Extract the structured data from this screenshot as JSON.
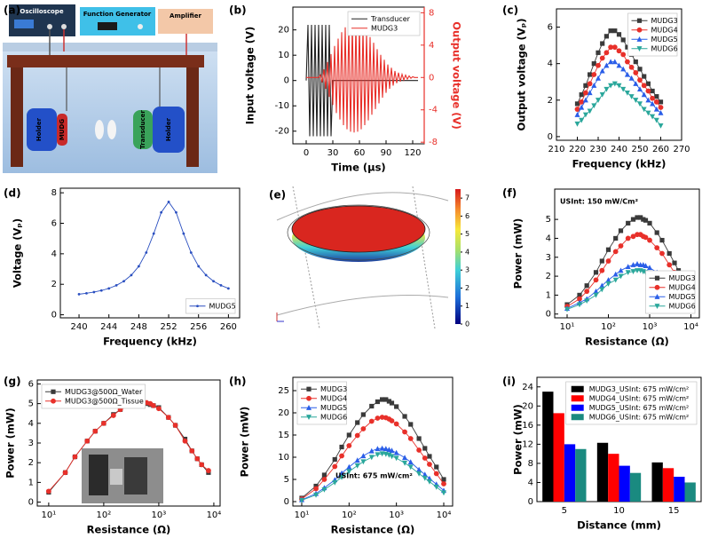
{
  "chart_data": [
    {
      "type": "diagram",
      "panel_label": "(a)",
      "labels": {
        "oscilloscope": "Oscilloscope",
        "function_generator": "Function Generator",
        "amplifier": "Amplifier",
        "holder_left": "Holder",
        "mudg": "MUDG",
        "transducer": "Transducer",
        "holder_right": "Holder"
      }
    },
    {
      "type": "line",
      "panel_label": "(b)",
      "xlabel": "Time (μs)",
      "ylabel": "Input voltage (V)",
      "y2label": "Output voltage (V)",
      "x": [
        0,
        2,
        4,
        6,
        8,
        10,
        12,
        14,
        16,
        18,
        20,
        22,
        24,
        26,
        28,
        30,
        32,
        34,
        36,
        38,
        40,
        42,
        44,
        46,
        48,
        50,
        52,
        54,
        56,
        58,
        60,
        62,
        64,
        66,
        68,
        70,
        72,
        74,
        76,
        78,
        80,
        82,
        84,
        86,
        88,
        90,
        92,
        94,
        96,
        98,
        100,
        102,
        104,
        106,
        108,
        110,
        112,
        114,
        116,
        118,
        120,
        122,
        124,
        126
      ],
      "series": [
        {
          "name": "Transducer",
          "color": "#222222",
          "marker": "none",
          "values": [
            0,
            22,
            -22,
            22,
            -22,
            22,
            -22,
            22,
            -22,
            22,
            -22,
            22,
            -22,
            22,
            -22,
            0,
            0,
            0,
            0,
            0,
            0,
            0,
            0,
            0,
            0,
            0,
            0,
            0,
            0,
            0,
            0,
            0,
            0,
            0,
            0,
            0,
            0,
            0,
            0,
            0,
            0,
            0,
            0,
            0,
            0,
            0,
            0,
            0,
            0,
            0,
            0,
            0,
            0,
            0,
            0,
            0,
            0,
            0,
            0,
            0,
            0,
            0,
            0,
            0
          ]
        },
        {
          "name": "MUDG3",
          "color": "#e8302a",
          "marker": "none",
          "axis": "y2",
          "values": [
            0,
            0,
            0,
            0,
            0,
            0,
            0,
            0,
            0.3,
            -0.6,
            1.0,
            -1.4,
            1.9,
            -2.4,
            2.9,
            -3.4,
            3.9,
            -4.4,
            4.8,
            -5.2,
            5.6,
            -5.9,
            6.2,
            -6.4,
            6.6,
            -6.7,
            6.8,
            -6.8,
            6.8,
            -6.7,
            6.6,
            -6.4,
            6.2,
            -5.9,
            5.6,
            -5.3,
            5.0,
            -4.6,
            4.3,
            -3.9,
            3.5,
            -3.2,
            2.8,
            -2.5,
            2.2,
            -1.9,
            1.6,
            -1.4,
            1.2,
            -1.0,
            0.8,
            -0.7,
            0.6,
            -0.5,
            0.4,
            -0.3,
            0.3,
            -0.2,
            0.2,
            -0.1,
            0.1,
            0,
            0,
            0
          ]
        }
      ],
      "xlim": [
        -15,
        133
      ],
      "xticks": [
        0,
        30,
        60,
        90,
        120
      ],
      "ylim": [
        -25,
        29
      ],
      "yticks": [
        -20,
        -10,
        0,
        10,
        20
      ],
      "y2lim": [
        -8.2,
        8.7
      ],
      "y2ticks": [
        -8,
        -4,
        0,
        4,
        8
      ],
      "legend": "upper right"
    },
    {
      "type": "line",
      "panel_label": "(c)",
      "xlabel": "Frequency (kHz)",
      "ylabel": "Output voltage (Vₚ)",
      "x": [
        220,
        222,
        224,
        226,
        228,
        230,
        232,
        234,
        236,
        238,
        240,
        242,
        244,
        246,
        248,
        250,
        252,
        254,
        256,
        258,
        260
      ],
      "series": [
        {
          "name": "MUDG3",
          "color": "#3a3a3a",
          "marker": "square",
          "values": [
            1.8,
            2.3,
            2.8,
            3.4,
            4.0,
            4.6,
            5.1,
            5.5,
            5.8,
            5.8,
            5.6,
            5.3,
            4.9,
            4.5,
            4.1,
            3.7,
            3.3,
            2.9,
            2.5,
            2.2,
            1.9
          ]
        },
        {
          "name": "MUDG4",
          "color": "#e8302a",
          "marker": "circle",
          "values": [
            1.5,
            1.9,
            2.4,
            2.9,
            3.4,
            3.9,
            4.3,
            4.6,
            4.9,
            4.9,
            4.7,
            4.5,
            4.1,
            3.8,
            3.5,
            3.1,
            2.8,
            2.5,
            2.1,
            1.9,
            1.6
          ]
        },
        {
          "name": "MUDG5",
          "color": "#2a5ee8",
          "marker": "triangle-up",
          "values": [
            1.2,
            1.6,
            2.0,
            2.4,
            2.8,
            3.2,
            3.6,
            3.9,
            4.1,
            4.1,
            3.9,
            3.7,
            3.4,
            3.2,
            2.9,
            2.6,
            2.3,
            2.0,
            1.8,
            1.5,
            1.3
          ]
        },
        {
          "name": "MUDG6",
          "color": "#2aa79b",
          "marker": "triangle-down",
          "values": [
            0.7,
            0.9,
            1.2,
            1.4,
            1.7,
            2.0,
            2.3,
            2.6,
            2.8,
            2.9,
            2.8,
            2.6,
            2.4,
            2.2,
            2.0,
            1.8,
            1.5,
            1.3,
            1.1,
            0.9,
            0.6
          ]
        }
      ],
      "xlim": [
        210,
        270
      ],
      "xticks": [
        210,
        220,
        230,
        240,
        250,
        260,
        270
      ],
      "ylim": [
        -0.2,
        7
      ],
      "yticks": [
        0,
        2,
        4,
        6
      ],
      "legend": "upper right"
    },
    {
      "type": "line",
      "panel_label": "(d)",
      "xlabel": "Frequency (kHz)",
      "ylabel": "Voltage (Vₚ)",
      "x": [
        240,
        241,
        242,
        243,
        244,
        245,
        246,
        247,
        248,
        249,
        250,
        251,
        252,
        253,
        254,
        255,
        256,
        257,
        258,
        259,
        260
      ],
      "series": [
        {
          "name": "MUDG5",
          "color": "#2a4fc0",
          "marker": "dot",
          "values": [
            1.35,
            1.41,
            1.49,
            1.59,
            1.73,
            1.93,
            2.2,
            2.6,
            3.18,
            4.08,
            5.32,
            6.71,
            7.4,
            6.71,
            5.32,
            4.08,
            3.18,
            2.6,
            2.2,
            1.93,
            1.73
          ]
        }
      ],
      "xlim": [
        237.5,
        261.5
      ],
      "xticks": [
        240,
        244,
        248,
        252,
        256,
        260
      ],
      "ylim": [
        -0.2,
        8.3
      ],
      "yticks": [
        0,
        2,
        4,
        6,
        8
      ],
      "legend": "lower right"
    },
    {
      "type": "contour",
      "panel_label": "(e)",
      "clim": [
        0,
        7.5
      ],
      "cticks": [
        0,
        1,
        2,
        3,
        4,
        5,
        6,
        7
      ]
    },
    {
      "type": "line",
      "panel_label": "(f)",
      "xlabel": "Resistance (Ω)",
      "ylabel": "Power (mW)",
      "annotation": "USInt: 150 mW/Cm²",
      "xlog": true,
      "x": [
        10,
        20,
        30,
        50,
        70,
        100,
        150,
        200,
        300,
        400,
        500,
        600,
        700,
        800,
        1000,
        1500,
        2000,
        3000,
        4000,
        5000,
        7000,
        10000
      ],
      "series": [
        {
          "name": "MUDG3",
          "color": "#3a3a3a",
          "marker": "square",
          "values": [
            0.5,
            1.0,
            1.5,
            2.2,
            2.8,
            3.4,
            4.0,
            4.4,
            4.8,
            5.0,
            5.1,
            5.1,
            5.0,
            4.95,
            4.8,
            4.3,
            3.9,
            3.2,
            2.7,
            2.3,
            1.8,
            1.3
          ]
        },
        {
          "name": "MUDG4",
          "color": "#e8302a",
          "marker": "circle",
          "values": [
            0.4,
            0.8,
            1.2,
            1.8,
            2.3,
            2.8,
            3.3,
            3.6,
            4.0,
            4.1,
            4.2,
            4.2,
            4.1,
            4.05,
            3.9,
            3.5,
            3.2,
            2.6,
            2.2,
            1.9,
            1.4,
            1.0
          ]
        },
        {
          "name": "MUDG5",
          "color": "#2a5ee8",
          "marker": "triangle-up",
          "values": [
            0.3,
            0.6,
            0.8,
            1.2,
            1.5,
            1.8,
            2.1,
            2.3,
            2.5,
            2.6,
            2.65,
            2.6,
            2.6,
            2.55,
            2.45,
            2.2,
            2.0,
            1.6,
            1.35,
            1.15,
            0.85,
            0.6
          ]
        },
        {
          "name": "MUDG6",
          "color": "#2aa79b",
          "marker": "triangle-down",
          "values": [
            0.25,
            0.5,
            0.7,
            1.0,
            1.3,
            1.6,
            1.8,
            2.0,
            2.2,
            2.25,
            2.3,
            2.3,
            2.25,
            2.2,
            2.1,
            1.9,
            1.7,
            1.35,
            1.1,
            0.95,
            0.7,
            0.4
          ]
        }
      ],
      "xlim": [
        5,
        16000
      ],
      "xticks": [
        {
          "value": 10,
          "label": "10¹"
        },
        {
          "value": 100,
          "label": "10²"
        },
        {
          "value": 1000,
          "label": "10³"
        },
        {
          "value": 10000,
          "label": "10⁴"
        }
      ],
      "ylim": [
        -0.2,
        6.6
      ],
      "yticks": [
        0,
        1,
        2,
        3,
        4,
        5
      ],
      "legend": "lower right"
    },
    {
      "type": "line",
      "panel_label": "(g)",
      "xlabel": "Resistance (Ω)",
      "ylabel": "Power (mW)",
      "xlog": true,
      "x": [
        10,
        20,
        30,
        50,
        70,
        100,
        150,
        200,
        300,
        400,
        500,
        600,
        700,
        800,
        1000,
        1500,
        2000,
        3000,
        4000,
        5000,
        6000,
        8000
      ],
      "series": [
        {
          "name": "MUDG3@500Ω_Water",
          "color": "#3a3a3a",
          "marker": "square",
          "values": [
            0.5,
            1.5,
            2.3,
            3.1,
            3.6,
            4.0,
            4.45,
            4.7,
            4.95,
            5.05,
            5.05,
            5.0,
            4.95,
            4.9,
            4.8,
            4.3,
            3.9,
            3.2,
            2.6,
            2.2,
            1.9,
            1.5
          ]
        },
        {
          "name": "MUDG3@500Ω_Tissue",
          "color": "#e8302a",
          "marker": "circle",
          "values": [
            0.55,
            1.5,
            2.3,
            3.1,
            3.6,
            4.0,
            4.4,
            4.7,
            4.9,
            5.0,
            5.05,
            5.05,
            5.0,
            4.9,
            4.75,
            4.3,
            3.9,
            3.1,
            2.6,
            2.2,
            1.9,
            1.6
          ]
        }
      ],
      "xlim": [
        6.2,
        13000
      ],
      "xticks": [
        {
          "value": 10,
          "label": "10¹"
        },
        {
          "value": 100,
          "label": "10²"
        },
        {
          "value": 1000,
          "label": "10³"
        },
        {
          "value": 10000,
          "label": "10⁴"
        }
      ],
      "ylim": [
        -0.2,
        6.2
      ],
      "yticks": [
        0,
        1,
        2,
        3,
        4,
        5,
        6
      ],
      "legend": "upper left"
    },
    {
      "type": "line",
      "panel_label": "(h)",
      "xlabel": "Resistance (Ω)",
      "ylabel": "Power (mW)",
      "annotation": "USInt: 675 mW/cm²",
      "xlog": true,
      "x": [
        10,
        20,
        30,
        50,
        70,
        100,
        150,
        200,
        300,
        400,
        500,
        600,
        700,
        800,
        1000,
        1500,
        2000,
        3000,
        4000,
        5000,
        7000,
        10000
      ],
      "series": [
        {
          "name": "MUDG3",
          "color": "#3a3a3a",
          "marker": "square",
          "values": [
            0.8,
            3.5,
            6.0,
            9.5,
            12.3,
            15.0,
            17.8,
            19.6,
            21.5,
            22.5,
            23.0,
            23.0,
            22.6,
            22.2,
            21.4,
            19.2,
            17.4,
            14.2,
            12.0,
            10.2,
            7.8,
            5.0
          ]
        },
        {
          "name": "MUDG4",
          "color": "#e8302a",
          "marker": "circle",
          "values": [
            0.6,
            2.9,
            5.0,
            7.9,
            10.3,
            12.6,
            14.9,
            16.4,
            18.1,
            18.8,
            19.0,
            18.9,
            18.6,
            18.2,
            17.5,
            15.7,
            14.2,
            11.6,
            9.8,
            8.4,
            6.3,
            4.0
          ]
        },
        {
          "name": "MUDG5",
          "color": "#2a5ee8",
          "marker": "triangle-up",
          "values": [
            0.4,
            1.8,
            3.1,
            4.9,
            6.4,
            7.8,
            9.3,
            10.3,
            11.4,
            11.9,
            12.0,
            11.9,
            11.7,
            11.5,
            11.0,
            9.9,
            8.9,
            7.2,
            6.1,
            5.2,
            3.9,
            2.5
          ]
        },
        {
          "name": "MUDG6",
          "color": "#2aa79b",
          "marker": "triangle-down",
          "values": [
            0.3,
            1.5,
            2.7,
            4.3,
            5.5,
            6.8,
            8.1,
            9.0,
            10.0,
            10.6,
            10.8,
            10.7,
            10.5,
            10.2,
            9.8,
            8.7,
            7.8,
            6.3,
            5.3,
            4.5,
            3.3,
            2.0
          ]
        }
      ],
      "xlim": [
        6.5,
        15400
      ],
      "xticks": [
        {
          "value": 10,
          "label": "10¹"
        },
        {
          "value": 100,
          "label": "10²"
        },
        {
          "value": 1000,
          "label": "10³"
        },
        {
          "value": 10000,
          "label": "10⁴"
        }
      ],
      "ylim": [
        -1,
        28
      ],
      "yticks": [
        0,
        5,
        10,
        15,
        20,
        25
      ],
      "legend": "upper left"
    },
    {
      "type": "bar",
      "panel_label": "(i)",
      "xlabel": "Distance (mm)",
      "ylabel": "Power (mW)",
      "categories": [
        "5",
        "10",
        "15"
      ],
      "series": [
        {
          "name": "MUDG3_USInt: 675 mW/cm²",
          "color": "#000000",
          "values": [
            23,
            12.3,
            8.2
          ]
        },
        {
          "name": "MUDG4_USInt: 675 mW/cm²",
          "color": "#ff0000",
          "values": [
            18.5,
            10,
            7
          ]
        },
        {
          "name": "MUDG5_USInt: 675 mW/cm²",
          "color": "#0000ff",
          "values": [
            12,
            7.5,
            5.2
          ]
        },
        {
          "name": "MUDG6_USInt: 675 mW/cm²",
          "color": "#1a8a80",
          "values": [
            11,
            6,
            4
          ]
        }
      ],
      "ylim": [
        0,
        26
      ],
      "yticks": [
        0,
        4,
        8,
        12,
        16,
        20,
        24
      ],
      "legend": "upper right"
    }
  ]
}
